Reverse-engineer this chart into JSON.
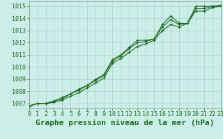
{
  "title": "Graphe pression niveau de la mer (hPa)",
  "bg_color": "#cceee8",
  "grid_color": "#aacfcc",
  "line_color": "#1a6b1a",
  "xlim": [
    0,
    23
  ],
  "ylim": [
    1006.6,
    1015.4
  ],
  "yticks": [
    1007,
    1008,
    1009,
    1010,
    1011,
    1012,
    1013,
    1014,
    1015
  ],
  "xticks": [
    0,
    1,
    2,
    3,
    4,
    5,
    6,
    7,
    8,
    9,
    10,
    11,
    12,
    13,
    14,
    15,
    16,
    17,
    18,
    19,
    20,
    21,
    22,
    23
  ],
  "series": [
    [
      1006.8,
      1007.0,
      1007.0,
      1007.2,
      1007.5,
      1007.8,
      1008.2,
      1008.5,
      1009.0,
      1009.4,
      1010.6,
      1011.0,
      1011.6,
      1012.2,
      1012.2,
      1012.3,
      1013.5,
      1014.2,
      1013.6,
      1013.6,
      1015.0,
      1015.0,
      1015.0,
      1015.1
    ],
    [
      1006.8,
      1007.0,
      1007.0,
      1007.1,
      1007.3,
      1007.6,
      1007.9,
      1008.3,
      1008.7,
      1009.1,
      1010.3,
      1010.7,
      1011.2,
      1011.7,
      1011.9,
      1012.2,
      1013.0,
      1013.5,
      1013.3,
      1013.6,
      1014.6,
      1014.6,
      1014.9,
      1015.0
    ],
    [
      1006.8,
      1007.0,
      1007.0,
      1007.2,
      1007.4,
      1007.8,
      1008.1,
      1008.5,
      1008.9,
      1009.3,
      1010.5,
      1010.9,
      1011.5,
      1012.0,
      1012.1,
      1012.3,
      1013.3,
      1013.9,
      1013.5,
      1013.6,
      1014.8,
      1014.8,
      1015.0,
      1015.0
    ]
  ],
  "marker": "+",
  "markersize": 3.5,
  "linewidth": 0.8,
  "title_fontsize": 8,
  "tick_fontsize": 6,
  "title_color": "#1a6b1a",
  "tick_color": "#1a6b1a",
  "spine_color": "#888888"
}
